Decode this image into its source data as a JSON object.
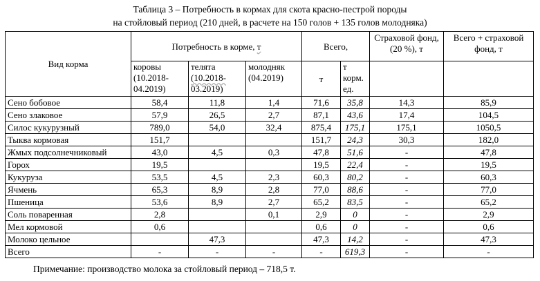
{
  "caption": {
    "line1": "Таблица 3 – Потребность в кормах для скота красно-пестрой породы",
    "line2": "на стойловый период (210 дней, в расчете на 150 голов + 135 голов молодняка)"
  },
  "headers": {
    "feed_type": "Вид корма",
    "need_group_prefix": "Потребность в корме, ",
    "need_group_unit": "т",
    "total": "Всего,",
    "reserve": "Страховой фонд, (20 %), т",
    "total_plus_reserve": "Всего + страховой фонд, т",
    "cows_prefix": "коровы ",
    "cows_period": "(10.2018-04.2019)",
    "calves_prefix": "телята ",
    "calves_period": "(10.2018-",
    "calves_period_end": "03.2019)",
    "young": "молодняк (04.2019)",
    "total_t": "т",
    "total_feed_units": "т корм. ед."
  },
  "rows": [
    {
      "name": "Сено бобовое",
      "cows": "58,4",
      "calves": "11,8",
      "young": "1,4",
      "total": "71,6",
      "feed_units": "35,8",
      "reserve": "14,3",
      "grand": "85,9"
    },
    {
      "name": "Сено злаковое",
      "cows": "57,9",
      "calves": "26,5",
      "young": "2,7",
      "total": "87,1",
      "feed_units": "43,6",
      "reserve": "17,4",
      "grand": "104,5"
    },
    {
      "name": "Силос кукурузный",
      "cows": "789,0",
      "calves": "54,0",
      "young": "32,4",
      "total": "875,4",
      "feed_units": "175,1",
      "reserve": "175,1",
      "grand": "1050,5"
    },
    {
      "name": "Тыква кормовая",
      "cows": "151,7",
      "calves": "",
      "young": "",
      "total": "151,7",
      "feed_units": "24,3",
      "reserve": "30,3",
      "grand": "182,0"
    },
    {
      "name": "Жмых подсолнечниковый",
      "cows": "43,0",
      "calves": "4,5",
      "young": "0,3",
      "total": "47,8",
      "feed_units": "51,6",
      "reserve": "-",
      "grand": "47,8"
    },
    {
      "name": "Горох",
      "cows": "19,5",
      "calves": "",
      "young": "",
      "total": "19,5",
      "feed_units": "22,4",
      "reserve": "-",
      "grand": "19,5"
    },
    {
      "name": "Кукуруза",
      "cows": "53,5",
      "calves": "4,5",
      "young": "2,3",
      "total": "60,3",
      "feed_units": "80,2",
      "reserve": "-",
      "grand": "60,3"
    },
    {
      "name": "Ячмень",
      "cows": "65,3",
      "calves": "8,9",
      "young": "2,8",
      "total": "77,0",
      "feed_units": "88,6",
      "reserve": "-",
      "grand": "77,0"
    },
    {
      "name": "Пшеница",
      "cows": "53,6",
      "calves": "8,9",
      "young": "2,7",
      "total": "65,2",
      "feed_units": "83,5",
      "reserve": "-",
      "grand": "65,2"
    },
    {
      "name": "Соль поваренная",
      "cows": "2,8",
      "calves": "",
      "young": "0,1",
      "total": "2,9",
      "feed_units": "0",
      "reserve": "-",
      "grand": "2,9"
    },
    {
      "name": "Мел кормовой",
      "cows": "0,6",
      "calves": "",
      "young": "",
      "total": "0,6",
      "feed_units": "0",
      "reserve": "-",
      "grand": "0,6"
    },
    {
      "name": "Молоко цельное",
      "cows": "",
      "calves": "47,3",
      "young": "",
      "total": "47,3",
      "feed_units": "14,2",
      "reserve": "-",
      "grand": "47,3"
    },
    {
      "name": "Всего",
      "cows": "-",
      "calves": "-",
      "young": "-",
      "total": "-",
      "feed_units": "619,3",
      "reserve": "-",
      "grand": "-"
    }
  ],
  "note": "Примечание: производство молока за стойловый период – 718,5 т."
}
